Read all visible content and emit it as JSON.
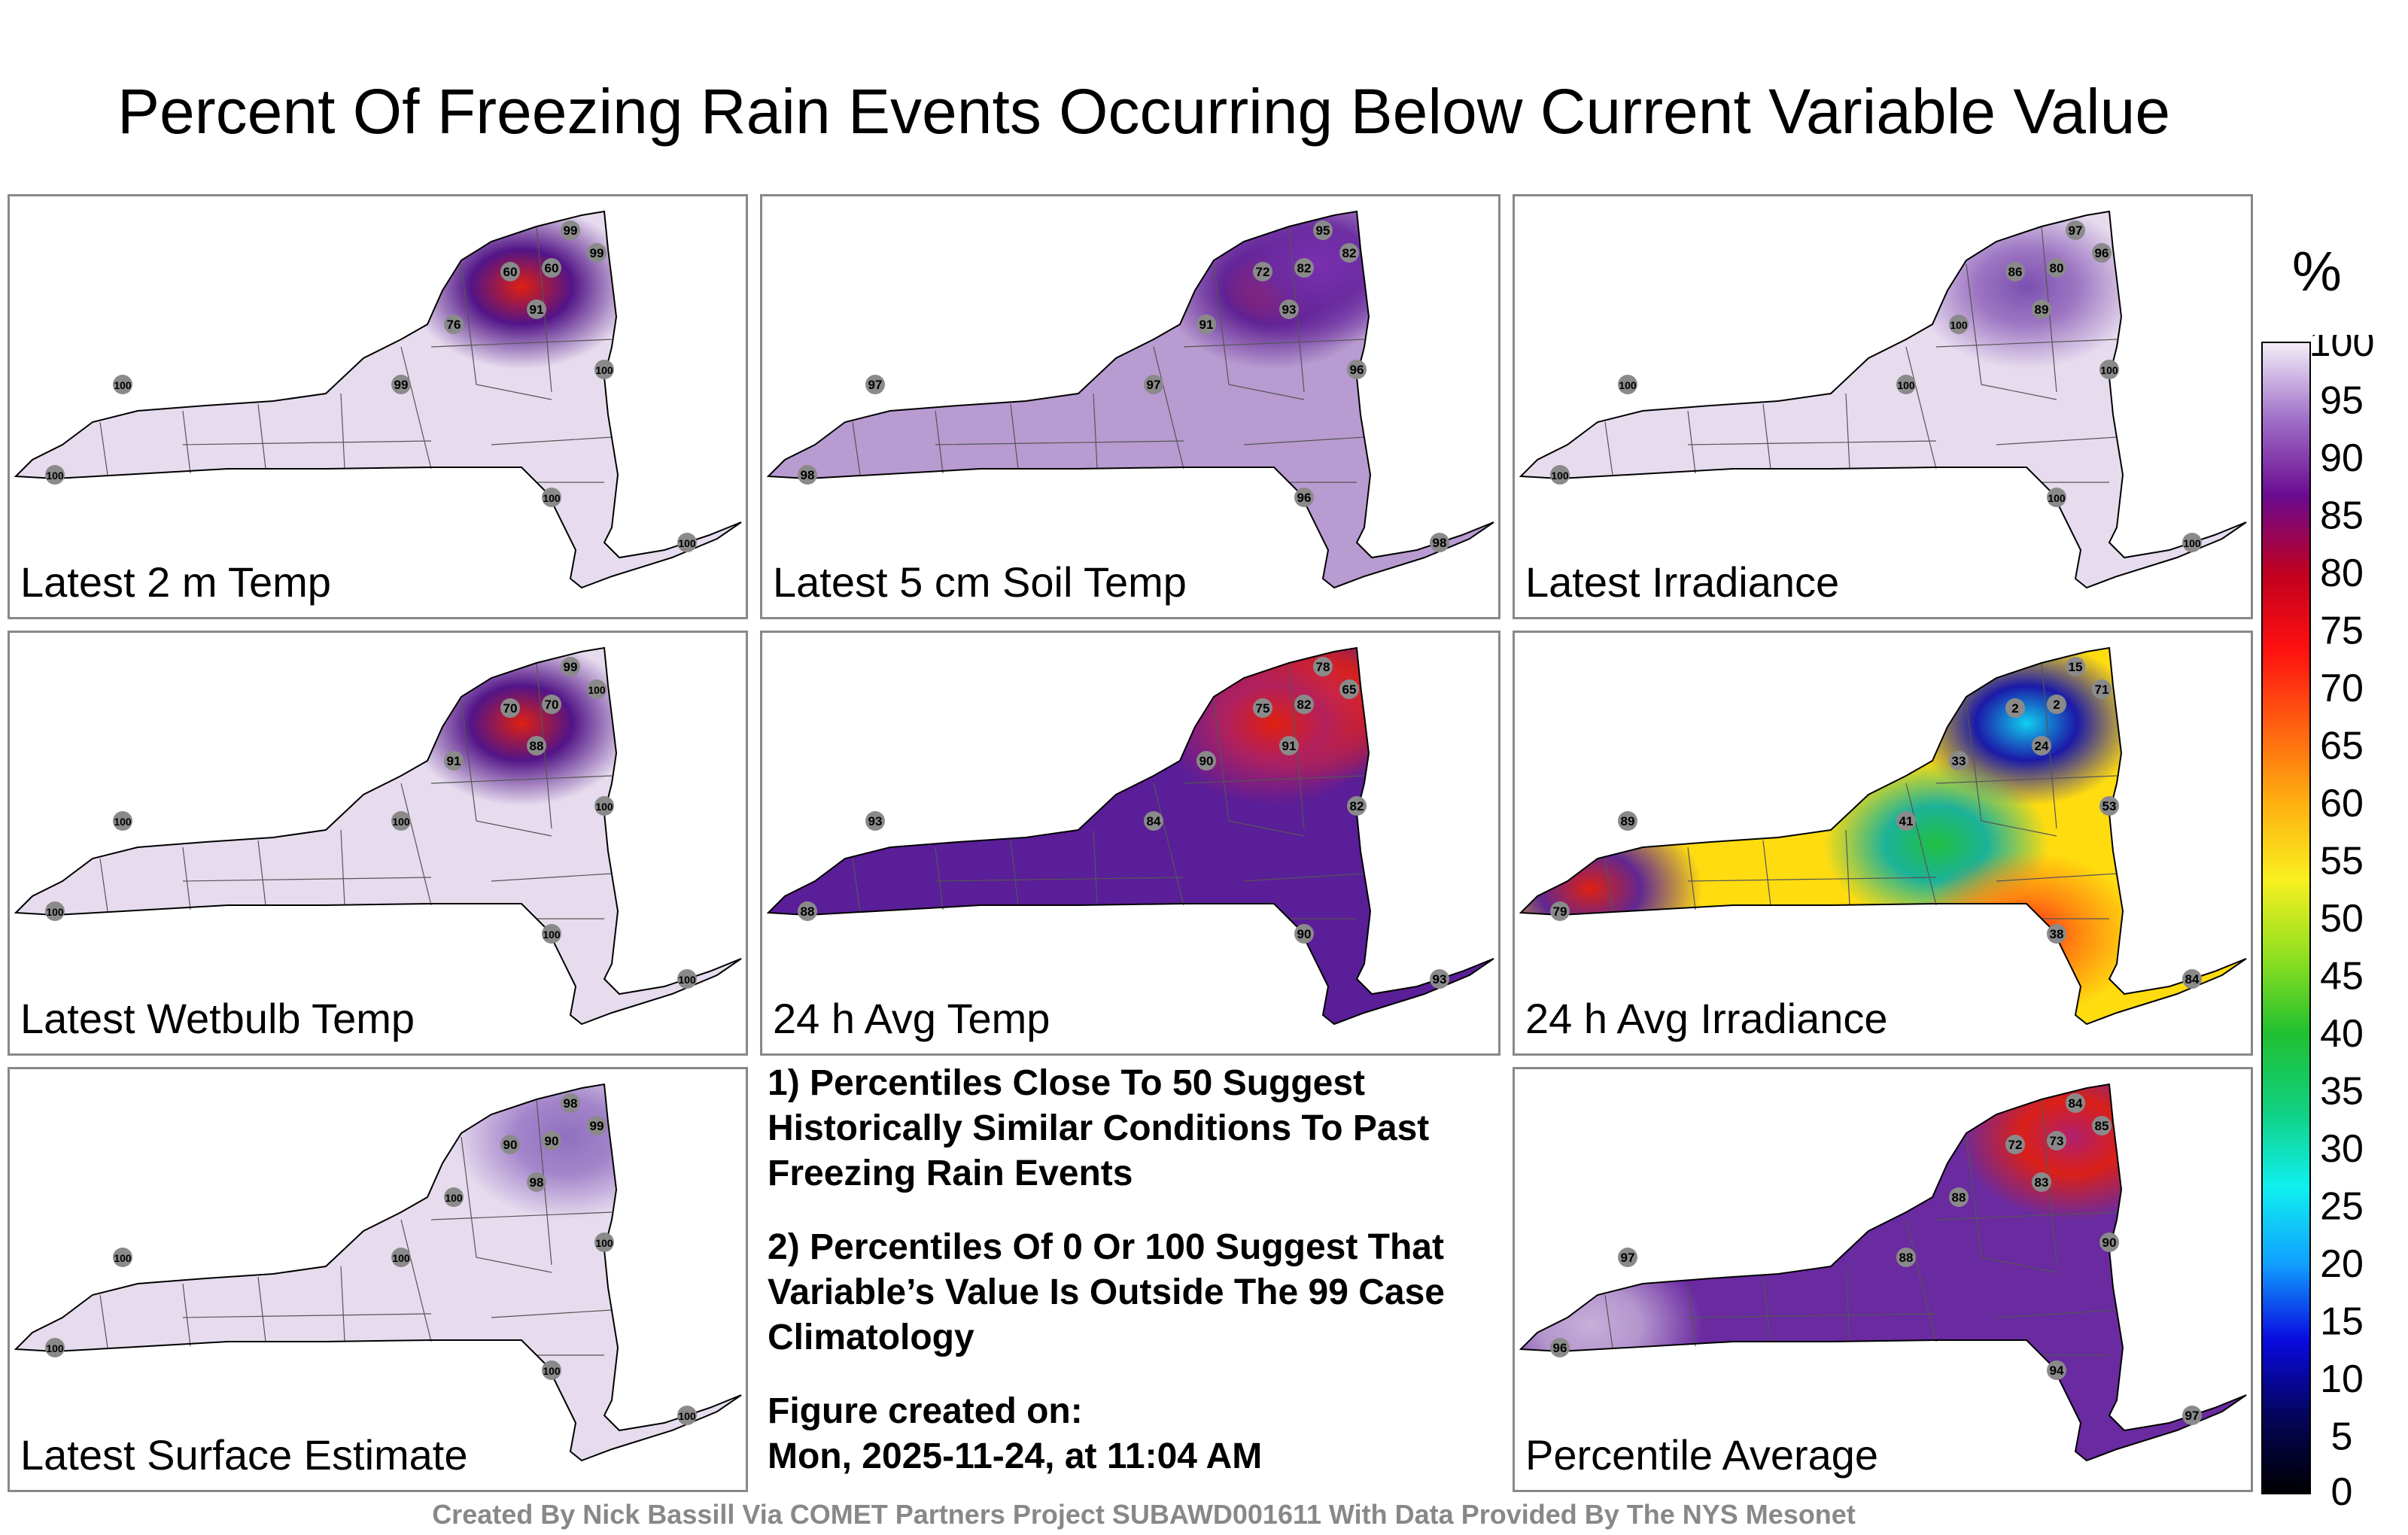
{
  "title": "Percent Of Freezing Rain Events Occurring Below Current Variable Value",
  "panels": [
    {
      "label": "Latest 2 m Temp",
      "base": "#e6dcee",
      "spots": [
        {
          "loc": "n",
          "color": "#4b0a82",
          "color2": "#e02010"
        }
      ],
      "stations": [
        [
          "99",
          "ne"
        ],
        [
          "60",
          "n"
        ],
        [
          "60",
          "n2"
        ],
        [
          "91",
          "n3"
        ],
        [
          "76",
          "nw"
        ],
        [
          "99",
          "c"
        ],
        [
          "100",
          "w"
        ],
        [
          "100",
          "sw"
        ],
        [
          "100",
          "se"
        ],
        [
          "100",
          "li"
        ],
        [
          "99",
          "ne2"
        ],
        [
          "100",
          "e"
        ]
      ]
    },
    {
      "label": "Latest 5 cm Soil Temp",
      "base": "#b89bd0",
      "spots": [
        {
          "loc": "n",
          "color": "#5a1a90",
          "color2": "#c01a30"
        },
        {
          "loc": "ne",
          "color": "#6a2aa0",
          "color2": "#7a30b0"
        }
      ],
      "stations": [
        [
          "95",
          "ne"
        ],
        [
          "72",
          "n"
        ],
        [
          "82",
          "n2"
        ],
        [
          "82",
          "ne2"
        ],
        [
          "97",
          "w"
        ],
        [
          "98",
          "sw"
        ],
        [
          "97",
          "c"
        ],
        [
          "96",
          "se"
        ],
        [
          "98",
          "li"
        ],
        [
          "91",
          "nw"
        ],
        [
          "93",
          "n3"
        ],
        [
          "96",
          "e"
        ]
      ]
    },
    {
      "label": "Latest Irradiance",
      "base": "#e6dcee",
      "spots": [
        {
          "loc": "n",
          "color": "#9a70c0",
          "color2": "#7a50b0"
        }
      ],
      "stations": [
        [
          "97",
          "ne"
        ],
        [
          "86",
          "n"
        ],
        [
          "80",
          "n2"
        ],
        [
          "89",
          "n3"
        ],
        [
          "100",
          "nw"
        ],
        [
          "100",
          "c"
        ],
        [
          "100",
          "w"
        ],
        [
          "100",
          "sw"
        ],
        [
          "100",
          "se"
        ],
        [
          "100",
          "li"
        ],
        [
          "96",
          "ne2"
        ],
        [
          "100",
          "e"
        ]
      ]
    },
    {
      "label": "Latest Wetbulb Temp",
      "base": "#e6dcee",
      "spots": [
        {
          "loc": "n",
          "color": "#4b0a82",
          "color2": "#e02010"
        }
      ],
      "stations": [
        [
          "99",
          "ne"
        ],
        [
          "70",
          "n"
        ],
        [
          "70",
          "n2"
        ],
        [
          "88",
          "n3"
        ],
        [
          "91",
          "nw"
        ],
        [
          "100",
          "c"
        ],
        [
          "100",
          "w"
        ],
        [
          "100",
          "sw"
        ],
        [
          "100",
          "se"
        ],
        [
          "100",
          "li"
        ],
        [
          "100",
          "ne2"
        ],
        [
          "100",
          "e"
        ]
      ]
    },
    {
      "label": "24 h Avg Temp",
      "base": "#5a1e98",
      "spots": [
        {
          "loc": "ne",
          "color": "#e02010",
          "color2": "#ff3010"
        },
        {
          "loc": "n",
          "color": "#b02060",
          "color2": "#e02010"
        }
      ],
      "stations": [
        [
          "78",
          "ne"
        ],
        [
          "75",
          "n"
        ],
        [
          "82",
          "n2"
        ],
        [
          "84",
          "c"
        ],
        [
          "93",
          "w"
        ],
        [
          "88",
          "sw"
        ],
        [
          "90",
          "se"
        ],
        [
          "93",
          "li"
        ],
        [
          "90",
          "nw"
        ],
        [
          "65",
          "ne2"
        ],
        [
          "82",
          "e"
        ],
        [
          "91",
          "n3"
        ]
      ]
    },
    {
      "label": "24 h Avg Irradiance",
      "base": "#ffdc10",
      "spots": [
        {
          "loc": "w",
          "color": "#5a1e98",
          "color2": "#e02010"
        },
        {
          "loc": "n",
          "color": "#1010b0",
          "color2": "#10d0f0"
        },
        {
          "loc": "c",
          "color": "#10b0a0",
          "color2": "#20c040"
        },
        {
          "loc": "se",
          "color": "#ff8010",
          "color2": "#ff2020"
        }
      ],
      "stations": [
        [
          "89",
          "w"
        ],
        [
          "2",
          "n"
        ],
        [
          "2",
          "n2"
        ],
        [
          "24",
          "n3"
        ],
        [
          "79",
          "sw"
        ],
        [
          "41",
          "c"
        ],
        [
          "38",
          "se"
        ],
        [
          "84",
          "li"
        ],
        [
          "33",
          "nw"
        ],
        [
          "15",
          "ne"
        ],
        [
          "53",
          "e"
        ],
        [
          "71",
          "ne2"
        ]
      ]
    },
    {
      "label": "Latest Surface Estimate",
      "base": "#e6dcee",
      "spots": [
        {
          "loc": "ne",
          "color": "#a080c8",
          "color2": "#9070c0"
        }
      ],
      "stations": [
        [
          "98",
          "ne"
        ],
        [
          "90",
          "n"
        ],
        [
          "90",
          "n2"
        ],
        [
          "98",
          "n3"
        ],
        [
          "100",
          "nw"
        ],
        [
          "100",
          "c"
        ],
        [
          "100",
          "w"
        ],
        [
          "100",
          "sw"
        ],
        [
          "100",
          "se"
        ],
        [
          "100",
          "li"
        ],
        [
          "99",
          "ne2"
        ],
        [
          "100",
          "e"
        ]
      ]
    },
    null,
    {
      "label": "Percentile Average",
      "base": "#6a2aa0",
      "spots": [
        {
          "loc": "ne",
          "color": "#e02010",
          "color2": "#b02070"
        },
        {
          "loc": "w",
          "color": "#b89bd0",
          "color2": "#c8aed8"
        }
      ],
      "stations": [
        [
          "84",
          "ne"
        ],
        [
          "72",
          "n"
        ],
        [
          "73",
          "n2"
        ],
        [
          "83",
          "n3"
        ],
        [
          "88",
          "nw"
        ],
        [
          "88",
          "c"
        ],
        [
          "97",
          "w"
        ],
        [
          "96",
          "sw"
        ],
        [
          "94",
          "se"
        ],
        [
          "97",
          "li"
        ],
        [
          "85",
          "ne2"
        ],
        [
          "90",
          "e"
        ]
      ]
    }
  ],
  "notes": [
    "1) Percentiles Close To 50 Suggest Historically Similar Conditions To Past Freezing Rain Events",
    "2) Percentiles Of 0 Or 100 Suggest That Variable’s Value Is Outside The 99 Case Climatology"
  ],
  "created_label": "Figure created on:",
  "created_date": "Mon, 2025-11-24, at 11:04 AM",
  "colorbar": {
    "unit": "%",
    "ticks": [
      "0",
      "5",
      "10",
      "15",
      "20",
      "25",
      "30",
      "35",
      "40",
      "45",
      "50",
      "55",
      "60",
      "65",
      "70",
      "75",
      "80",
      "85",
      "90",
      "95",
      "100"
    ],
    "stops": [
      "#000000",
      "#04045a",
      "#0a0ae0",
      "#10a0ff",
      "#10f0f0",
      "#10d080",
      "#20c030",
      "#90e020",
      "#f8f020",
      "#ffb010",
      "#ff6010",
      "#ff1010",
      "#c00020",
      "#6a0a90",
      "#a070c8",
      "#f4eef8"
    ]
  },
  "footer": "Created By Nick Bassill Via COMET Partners Project SUBAWD001611 With Data Provided By The NYS Mesonet"
}
